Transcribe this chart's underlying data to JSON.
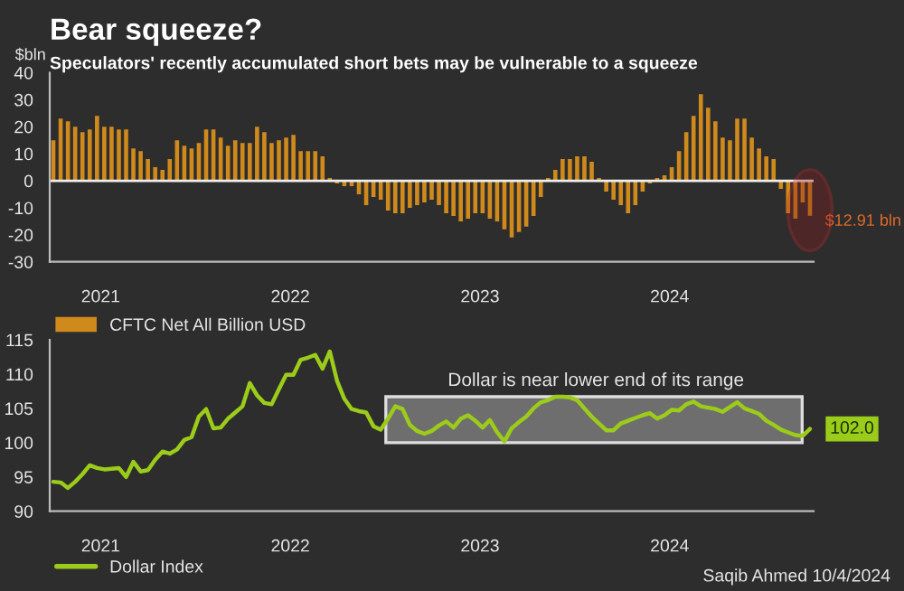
{
  "chart_data": [
    {
      "type": "bar",
      "title": "Bear squeeze?",
      "subtitle": "Speculators' recently accumulated short bets may be vulnerable to a squeeze",
      "ylabel": "$bln",
      "x": [
        "2020-10-02",
        "2020-10-16",
        "2020-10-30",
        "2020-11-13",
        "2020-11-27",
        "2020-12-11",
        "2020-12-25",
        "2021-01-08",
        "2021-01-22",
        "2021-02-05",
        "2021-02-19",
        "2021-03-05",
        "2021-03-19",
        "2021-04-02",
        "2021-04-16",
        "2021-04-30",
        "2021-05-14",
        "2021-05-28",
        "2021-06-11",
        "2021-06-25",
        "2021-07-09",
        "2021-07-23",
        "2021-08-06",
        "2021-08-20",
        "2021-09-03",
        "2021-09-17",
        "2021-10-01",
        "2021-10-15",
        "2021-10-29",
        "2021-11-12",
        "2021-11-26",
        "2021-12-10",
        "2021-12-24",
        "2022-01-07",
        "2022-01-21",
        "2022-02-04",
        "2022-02-18",
        "2022-03-04",
        "2022-03-18",
        "2022-04-01",
        "2022-04-15",
        "2022-04-29",
        "2022-05-13",
        "2022-05-27",
        "2022-06-10",
        "2022-06-24",
        "2022-07-08",
        "2022-07-22",
        "2022-08-05",
        "2022-08-19",
        "2022-09-02",
        "2022-09-16",
        "2022-09-30",
        "2022-10-14",
        "2022-10-28",
        "2022-11-11",
        "2022-11-25",
        "2022-12-09",
        "2022-12-23",
        "2023-01-06",
        "2023-01-20",
        "2023-02-03",
        "2023-02-17",
        "2023-03-03",
        "2023-03-17",
        "2023-03-31",
        "2023-04-14",
        "2023-04-28",
        "2023-05-12",
        "2023-05-26",
        "2023-06-09",
        "2023-06-23",
        "2023-07-07",
        "2023-07-21",
        "2023-08-04",
        "2023-08-18",
        "2023-09-01",
        "2023-09-15",
        "2023-09-29",
        "2023-10-13",
        "2023-10-27",
        "2023-11-10",
        "2023-11-24",
        "2023-12-08",
        "2023-12-22",
        "2024-01-05",
        "2024-01-19",
        "2024-02-02",
        "2024-02-16",
        "2024-03-01",
        "2024-03-15",
        "2024-03-29",
        "2024-04-12",
        "2024-04-26",
        "2024-05-10",
        "2024-05-24",
        "2024-06-07",
        "2024-06-21",
        "2024-07-05",
        "2024-07-19",
        "2024-08-02",
        "2024-08-16",
        "2024-08-30",
        "2024-09-13",
        "2024-09-27"
      ],
      "series": [
        {
          "name": "CFTC Net All Billion USD",
          "color": "#d08a1c",
          "values": [
            15,
            23,
            22,
            20,
            18,
            19,
            24,
            20,
            20,
            19,
            19,
            12,
            11,
            8,
            5,
            4,
            8,
            15,
            13,
            12,
            14,
            19,
            19,
            16,
            13,
            15,
            14,
            14,
            20,
            18,
            14,
            15,
            16,
            17,
            11,
            11,
            11,
            9,
            1,
            -1,
            -2,
            -2,
            -5,
            -9,
            -6,
            -7,
            -11,
            -12,
            -12,
            -10,
            -9,
            -8,
            -7,
            -9,
            -12,
            -13,
            -15,
            -14,
            -12,
            -12,
            -14,
            -15,
            -18,
            -21,
            -19,
            -17,
            -13,
            -6,
            1,
            4,
            8,
            8,
            9,
            9,
            7,
            1,
            -4,
            -7,
            -9,
            -12,
            -9,
            -4,
            -1,
            1,
            2,
            5,
            11,
            18,
            24,
            32,
            27,
            22,
            16,
            15,
            23,
            23,
            16,
            12,
            9,
            8,
            -3,
            -12,
            -14,
            -8,
            -12.91
          ]
        }
      ],
      "xlim": [
        "2020-09-25",
        "2024-10-04"
      ],
      "xticks": [
        {
          "value": "2021-01-01",
          "label": "2021"
        },
        {
          "value": "2022-01-01",
          "label": "2022"
        },
        {
          "value": "2023-01-01",
          "label": "2023"
        },
        {
          "value": "2024-01-01",
          "label": "2024"
        }
      ],
      "ylim": [
        -30,
        40
      ],
      "yticks": [
        -30,
        -20,
        -10,
        0,
        10,
        20,
        30,
        40
      ],
      "ref_lines": [
        {
          "axis": "y",
          "value": 0,
          "color": "#eeeeee"
        }
      ],
      "annotations": [
        {
          "text": "$12.91 bln",
          "x": "2024-09-27",
          "y": -12.91
        }
      ],
      "legend": "bottom left",
      "grid": false
    },
    {
      "type": "line",
      "annotations": [
        "Saqib Ahmed 10/4/2024"
      ],
      "x": [
        "2020-10-02",
        "2020-10-16",
        "2020-10-30",
        "2020-11-13",
        "2020-11-27",
        "2020-12-11",
        "2020-12-25",
        "2021-01-08",
        "2021-01-22",
        "2021-02-05",
        "2021-02-19",
        "2021-03-05",
        "2021-03-19",
        "2021-04-02",
        "2021-04-16",
        "2021-04-30",
        "2021-05-14",
        "2021-05-28",
        "2021-06-11",
        "2021-06-25",
        "2021-07-09",
        "2021-07-23",
        "2021-08-06",
        "2021-08-20",
        "2021-09-03",
        "2021-09-17",
        "2021-10-01",
        "2021-10-15",
        "2021-10-29",
        "2021-11-12",
        "2021-11-26",
        "2021-12-10",
        "2021-12-24",
        "2022-01-07",
        "2022-01-21",
        "2022-02-04",
        "2022-02-18",
        "2022-03-04",
        "2022-03-18",
        "2022-04-01",
        "2022-04-15",
        "2022-04-29",
        "2022-05-13",
        "2022-05-27",
        "2022-06-10",
        "2022-06-24",
        "2022-07-08",
        "2022-07-22",
        "2022-08-05",
        "2022-08-19",
        "2022-09-02",
        "2022-09-16",
        "2022-09-30",
        "2022-10-14",
        "2022-10-28",
        "2022-11-11",
        "2022-11-25",
        "2022-12-09",
        "2022-12-23",
        "2023-01-06",
        "2023-01-20",
        "2023-02-03",
        "2023-02-17",
        "2023-03-03",
        "2023-03-17",
        "2023-03-31",
        "2023-04-14",
        "2023-04-28",
        "2023-05-12",
        "2023-05-26",
        "2023-06-09",
        "2023-06-23",
        "2023-07-07",
        "2023-07-21",
        "2023-08-04",
        "2023-08-18",
        "2023-09-01",
        "2023-09-15",
        "2023-09-29",
        "2023-10-13",
        "2023-10-27",
        "2023-11-10",
        "2023-11-24",
        "2023-12-08",
        "2023-12-22",
        "2024-01-05",
        "2024-01-19",
        "2024-02-02",
        "2024-02-16",
        "2024-03-01",
        "2024-03-15",
        "2024-03-29",
        "2024-04-12",
        "2024-04-26",
        "2024-05-10",
        "2024-05-24",
        "2024-06-07",
        "2024-06-21",
        "2024-07-05",
        "2024-07-19",
        "2024-08-02",
        "2024-08-16",
        "2024-08-30",
        "2024-09-13",
        "2024-09-27"
      ],
      "series": [
        {
          "name": "Dollar Index",
          "color": "#9ccc1a",
          "values": [
            94.3,
            94.2,
            93.4,
            94.3,
            95.4,
            96.7,
            96.3,
            96.1,
            96.2,
            96.3,
            95.0,
            97.2,
            95.8,
            96.0,
            97.5,
            98.7,
            98.4,
            99.0,
            100.4,
            100.8,
            103.8,
            104.9,
            102.1,
            102.2,
            103.5,
            104.4,
            105.3,
            108.7,
            106.9,
            105.8,
            105.6,
            107.8,
            109.9,
            109.9,
            112.1,
            112.4,
            112.8,
            110.8,
            113.3,
            109.0,
            106.4,
            104.9,
            104.6,
            104.4,
            102.4,
            101.9,
            103.5,
            105.3,
            104.9,
            102.6,
            101.7,
            101.3,
            101.7,
            102.5,
            103.1,
            102.2,
            103.5,
            104.0,
            103.2,
            102.2,
            103.3,
            101.5,
            100.2,
            102.1,
            103.0,
            103.8,
            105.0,
            105.9,
            106.2,
            106.7,
            106.7,
            106.6,
            106.2,
            105.0,
            103.8,
            102.8,
            101.8,
            101.8,
            102.8,
            103.2,
            103.6,
            104.0,
            104.3,
            103.5,
            104.0,
            104.8,
            104.7,
            105.6,
            106.0,
            105.3,
            105.1,
            104.9,
            104.5,
            105.2,
            105.9,
            105.0,
            104.6,
            104.2,
            103.2,
            102.6,
            101.9,
            101.5,
            101.1,
            101.0,
            102.0
          ],
          "value_labels": [
            null,
            null,
            null,
            null,
            null,
            null,
            null,
            null,
            null,
            null,
            null,
            null,
            null,
            null,
            null,
            null,
            null,
            null,
            null,
            null,
            null,
            null,
            null,
            null,
            null,
            null,
            null,
            null,
            null,
            null,
            null,
            null,
            null,
            null,
            null,
            null,
            null,
            null,
            null,
            null,
            null,
            null,
            null,
            null,
            null,
            null,
            null,
            null,
            null,
            null,
            null,
            null,
            null,
            null,
            null,
            null,
            null,
            null,
            null,
            null,
            null,
            null,
            null,
            null,
            null,
            null,
            null,
            null,
            null,
            null,
            null,
            null,
            null,
            null,
            null,
            null,
            null,
            null,
            null,
            null,
            null,
            null,
            null,
            null,
            null,
            null,
            null,
            null,
            null,
            null,
            null,
            null,
            null,
            null,
            null,
            null,
            null,
            null,
            null,
            null,
            null,
            null,
            null,
            null,
            "102.0"
          ]
        }
      ],
      "xlim": [
        "2020-09-25",
        "2024-10-04"
      ],
      "xticks": [
        {
          "value": "2021-01-01",
          "label": "2021"
        },
        {
          "value": "2022-01-01",
          "label": "2022"
        },
        {
          "value": "2023-01-01",
          "label": "2023"
        },
        {
          "value": "2024-01-01",
          "label": "2024"
        }
      ],
      "ylim": [
        90,
        115
      ],
      "yticks": [
        90,
        95,
        100,
        105,
        110,
        115
      ],
      "bands": [
        {
          "axis": "y",
          "from": 100.0,
          "to": 106.7,
          "label": "Dollar is near lower end of its range",
          "color": "#6e6e6e"
        }
      ],
      "legend": "bottom left",
      "grid": false,
      "line_style": "solid",
      "marker": "none"
    }
  ]
}
